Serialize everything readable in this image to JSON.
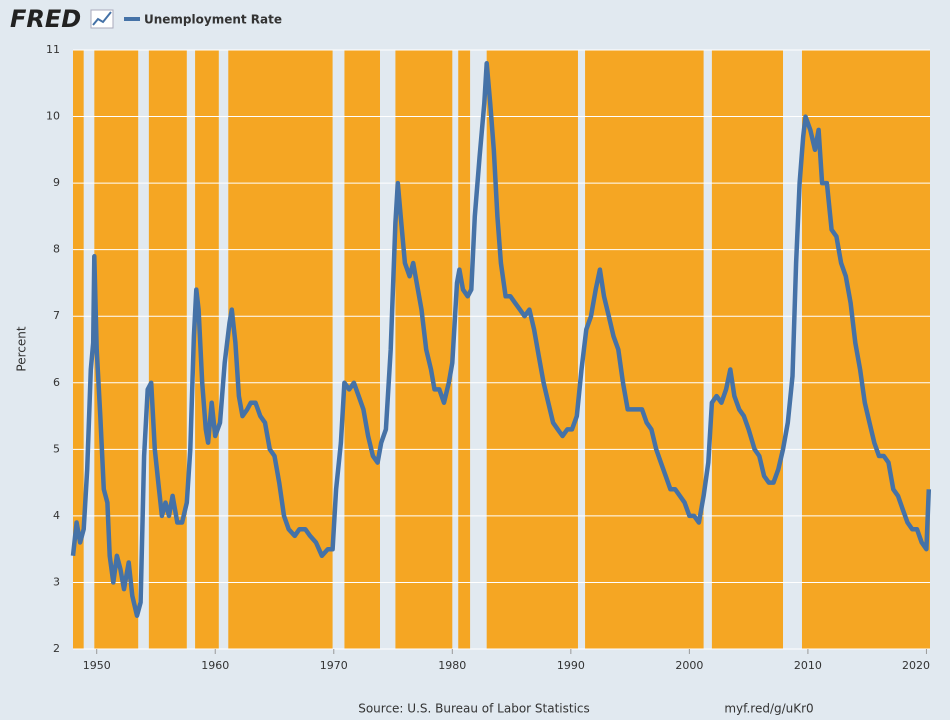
{
  "logo": "FRED",
  "chart_data": {
    "type": "line",
    "ylabel": "Percent",
    "source": "Source: U.S. Bureau of Labor Statistics",
    "link": "myf.red/g/uKr0",
    "xlim": [
      1948,
      2020.3
    ],
    "xticks": [
      1950,
      1960,
      1970,
      1980,
      1990,
      2000,
      2010,
      2020
    ],
    "ylim": [
      2,
      11
    ],
    "yticks": [
      2,
      3,
      4,
      5,
      6,
      7,
      8,
      9,
      10,
      11
    ],
    "grid": true,
    "band_color": "#f5a623",
    "bands": [
      [
        1948,
        1948.9
      ],
      [
        1949.8,
        1953.5
      ],
      [
        1954.4,
        1957.6
      ],
      [
        1958.3,
        1960.3
      ],
      [
        1961.1,
        1969.9
      ],
      [
        1970.9,
        1973.9
      ],
      [
        1975.2,
        1980.0
      ],
      [
        1980.5,
        1981.5
      ],
      [
        1982.9,
        1990.6
      ],
      [
        1991.2,
        2001.2
      ],
      [
        2001.9,
        2007.9
      ],
      [
        2009.5,
        2020.3
      ]
    ],
    "x": [
      1948.0,
      1948.3,
      1948.6,
      1948.9,
      1949.2,
      1949.5,
      1949.7,
      1949.8,
      1950.0,
      1950.3,
      1950.6,
      1950.9,
      1951.1,
      1951.4,
      1951.7,
      1952.0,
      1952.3,
      1952.7,
      1953.0,
      1953.4,
      1953.7,
      1954.0,
      1954.3,
      1954.6,
      1954.9,
      1955.2,
      1955.5,
      1955.8,
      1956.1,
      1956.4,
      1956.8,
      1957.2,
      1957.6,
      1957.9,
      1958.2,
      1958.4,
      1958.6,
      1958.9,
      1959.2,
      1959.4,
      1959.7,
      1960.0,
      1960.4,
      1960.8,
      1961.2,
      1961.4,
      1961.7,
      1962.0,
      1962.3,
      1962.7,
      1963.0,
      1963.4,
      1963.8,
      1964.2,
      1964.6,
      1965.0,
      1965.4,
      1965.8,
      1966.2,
      1966.7,
      1967.1,
      1967.6,
      1968.0,
      1968.5,
      1969.0,
      1969.5,
      1969.9,
      1970.2,
      1970.6,
      1970.9,
      1971.3,
      1971.7,
      1972.1,
      1972.5,
      1972.9,
      1973.3,
      1973.7,
      1974.0,
      1974.4,
      1974.8,
      1975.2,
      1975.4,
      1975.7,
      1976.0,
      1976.4,
      1976.7,
      1977.0,
      1977.4,
      1977.8,
      1978.2,
      1978.5,
      1978.9,
      1979.3,
      1979.7,
      1980.0,
      1980.4,
      1980.6,
      1980.9,
      1981.3,
      1981.6,
      1981.9,
      1982.3,
      1982.7,
      1982.9,
      1983.2,
      1983.5,
      1983.8,
      1984.1,
      1984.5,
      1984.9,
      1985.3,
      1985.7,
      1986.1,
      1986.5,
      1986.9,
      1987.3,
      1987.7,
      1988.1,
      1988.5,
      1988.9,
      1989.3,
      1989.7,
      1990.1,
      1990.5,
      1990.9,
      1991.3,
      1991.7,
      1992.1,
      1992.45,
      1992.8,
      1993.2,
      1993.6,
      1994.0,
      1994.4,
      1994.8,
      1995.2,
      1995.6,
      1996.0,
      1996.4,
      1996.8,
      1997.2,
      1997.6,
      1998.0,
      1998.4,
      1998.8,
      1999.2,
      1999.6,
      2000.0,
      2000.4,
      2000.8,
      2001.2,
      2001.6,
      2001.9,
      2002.3,
      2002.7,
      2003.1,
      2003.45,
      2003.8,
      2004.2,
      2004.6,
      2005.0,
      2005.5,
      2005.9,
      2006.3,
      2006.7,
      2007.1,
      2007.5,
      2007.9,
      2008.3,
      2008.7,
      2009.0,
      2009.3,
      2009.6,
      2009.8,
      2010.2,
      2010.6,
      2010.9,
      2011.2,
      2011.6,
      2012.0,
      2012.4,
      2012.8,
      2013.2,
      2013.6,
      2014.0,
      2014.4,
      2014.8,
      2015.2,
      2015.6,
      2016.0,
      2016.4,
      2016.8,
      2017.2,
      2017.6,
      2018.0,
      2018.4,
      2018.8,
      2019.2,
      2019.6,
      2020.0,
      2020.2
    ],
    "series": [
      {
        "name": "Unemployment Rate",
        "color": "#4572a7",
        "values": [
          3.4,
          3.9,
          3.6,
          3.8,
          4.7,
          6.2,
          6.6,
          7.9,
          6.5,
          5.5,
          4.4,
          4.2,
          3.4,
          3.0,
          3.4,
          3.2,
          2.9,
          3.3,
          2.8,
          2.5,
          2.7,
          4.9,
          5.9,
          6.0,
          5.0,
          4.5,
          4.0,
          4.2,
          4.0,
          4.3,
          3.9,
          3.9,
          4.2,
          5.0,
          6.7,
          7.4,
          7.1,
          6.0,
          5.3,
          5.1,
          5.7,
          5.2,
          5.4,
          6.3,
          6.9,
          7.1,
          6.6,
          5.8,
          5.5,
          5.6,
          5.7,
          5.7,
          5.5,
          5.4,
          5.0,
          4.9,
          4.5,
          4.0,
          3.8,
          3.7,
          3.8,
          3.8,
          3.7,
          3.6,
          3.4,
          3.5,
          3.5,
          4.4,
          5.1,
          6.0,
          5.9,
          6.0,
          5.8,
          5.6,
          5.2,
          4.9,
          4.8,
          5.1,
          5.3,
          6.5,
          8.4,
          9.0,
          8.4,
          7.8,
          7.6,
          7.8,
          7.5,
          7.1,
          6.5,
          6.2,
          5.9,
          5.9,
          5.7,
          6.0,
          6.3,
          7.5,
          7.7,
          7.4,
          7.3,
          7.4,
          8.5,
          9.4,
          10.2,
          10.8,
          10.2,
          9.5,
          8.5,
          7.8,
          7.3,
          7.3,
          7.2,
          7.1,
          7.0,
          7.1,
          6.8,
          6.4,
          6.0,
          5.7,
          5.4,
          5.3,
          5.2,
          5.3,
          5.3,
          5.5,
          6.2,
          6.8,
          7.0,
          7.4,
          7.7,
          7.3,
          7.0,
          6.7,
          6.5,
          6.0,
          5.6,
          5.6,
          5.6,
          5.6,
          5.4,
          5.3,
          5.0,
          4.8,
          4.6,
          4.4,
          4.4,
          4.3,
          4.2,
          4.0,
          4.0,
          3.9,
          4.3,
          4.8,
          5.7,
          5.8,
          5.7,
          5.9,
          6.2,
          5.8,
          5.6,
          5.5,
          5.3,
          5.0,
          4.9,
          4.6,
          4.5,
          4.5,
          4.7,
          5.0,
          5.4,
          6.1,
          7.8,
          9.0,
          9.7,
          10.0,
          9.8,
          9.5,
          9.8,
          9.0,
          9.0,
          8.3,
          8.2,
          7.8,
          7.6,
          7.2,
          6.6,
          6.2,
          5.7,
          5.4,
          5.1,
          4.9,
          4.9,
          4.8,
          4.4,
          4.3,
          4.1,
          3.9,
          3.8,
          3.8,
          3.6,
          3.5,
          4.4
        ]
      }
    ]
  }
}
